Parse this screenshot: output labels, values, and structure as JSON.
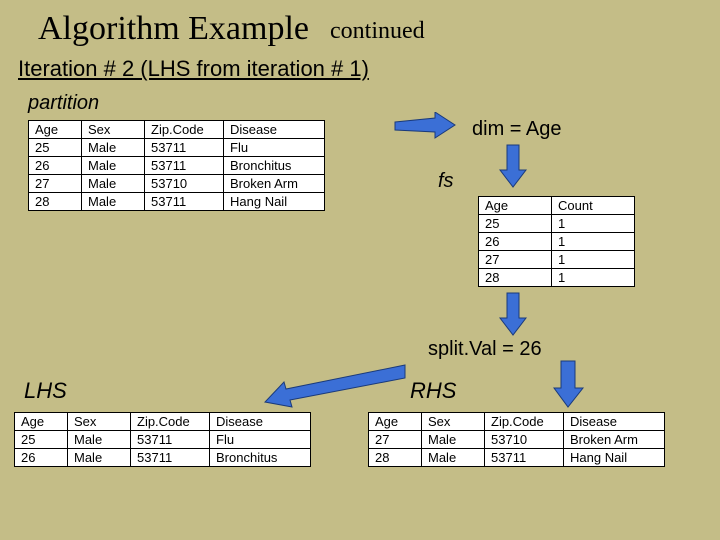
{
  "title": {
    "main": "Algorithm Example",
    "sub": "continued"
  },
  "iteration": "Iteration # 2 (LHS from iteration # 1)",
  "labels": {
    "partition": "partition",
    "dim": "dim = Age",
    "fs": "fs",
    "splitval": "split.Val = 26",
    "lhs": "LHS",
    "rhs": "RHS"
  },
  "partition_table": {
    "columns": [
      "Age",
      "Sex",
      "Zip.Code",
      "Disease"
    ],
    "rows": [
      [
        "25",
        "Male",
        "53711",
        "Flu"
      ],
      [
        "26",
        "Male",
        "53711",
        "Bronchitus"
      ],
      [
        "27",
        "Male",
        "53710",
        "Broken Arm"
      ],
      [
        "28",
        "Male",
        "53711",
        "Hang Nail"
      ]
    ]
  },
  "fs_table": {
    "columns": [
      "Age",
      "Count"
    ],
    "rows": [
      [
        "25",
        "1"
      ],
      [
        "26",
        "1"
      ],
      [
        "27",
        "1"
      ],
      [
        "28",
        "1"
      ]
    ]
  },
  "lhs_table": {
    "columns": [
      "Age",
      "Sex",
      "Zip.Code",
      "Disease"
    ],
    "rows": [
      [
        "25",
        "Male",
        "53711",
        "Flu"
      ],
      [
        "26",
        "Male",
        "53711",
        "Bronchitus"
      ]
    ]
  },
  "rhs_table": {
    "columns": [
      "Age",
      "Sex",
      "Zip.Code",
      "Disease"
    ],
    "rows": [
      [
        "27",
        "Male",
        "53710",
        "Broken Arm"
      ],
      [
        "28",
        "Male",
        "53711",
        "Hang Nail"
      ]
    ]
  },
  "col_widths": {
    "main": [
      40,
      50,
      66,
      88
    ],
    "fs": [
      60,
      70
    ]
  },
  "arrow_color": "#3b6fd6",
  "arrow_stroke": "#1a3a7a"
}
